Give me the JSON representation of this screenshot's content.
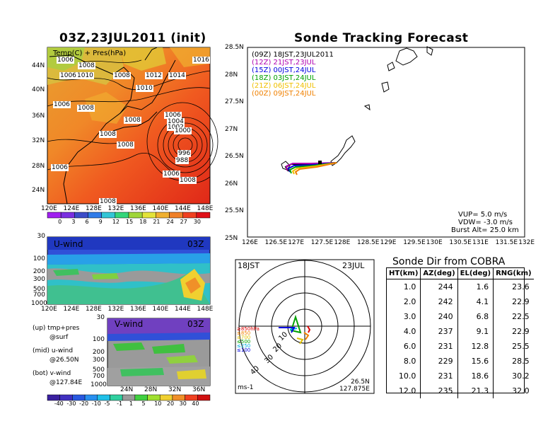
{
  "map_panel": {
    "title": "03Z,23JUL2011 (init)",
    "subtitle": "Temp(C) + Pres(hPa)",
    "lat_labels": [
      "44N",
      "40N",
      "36N",
      "32N",
      "28N",
      "24N"
    ],
    "lon_labels": [
      "120E",
      "124E",
      "128E",
      "132E",
      "136E",
      "140E",
      "144E",
      "148E"
    ],
    "pressure_labels": [
      "1006",
      "1008",
      "1006",
      "1010",
      "1008",
      "1012",
      "1014",
      "1016",
      "1010",
      "1006",
      "1008",
      "1006",
      "1008",
      "1004",
      "1002",
      "1000",
      "1008",
      "1008",
      "1006",
      "996",
      "988",
      "1006",
      "1008",
      "1008"
    ],
    "colorbar_values": [
      "0",
      "3",
      "6",
      "9",
      "12",
      "15",
      "18",
      "21",
      "24",
      "27",
      "30"
    ],
    "colorbar_colors": [
      "#a020f0",
      "#7a2ee0",
      "#3b4cc8",
      "#2f7be8",
      "#33c6d6",
      "#34d67a",
      "#9fd63a",
      "#e3e33a",
      "#f0b030",
      "#f08028",
      "#f04020",
      "#e01018"
    ]
  },
  "uwind_panel": {
    "label": "U-wind",
    "time": "03Z",
    "y_labels": [
      "30",
      "100",
      "200",
      "300",
      "500",
      "700",
      "1000"
    ],
    "x_labels": [
      "120E",
      "124E",
      "128E",
      "132E",
      "136E",
      "140E",
      "144E",
      "148E"
    ]
  },
  "vwind_panel": {
    "label": "V-wind",
    "time": "03Z",
    "y_labels": [
      "30",
      "100",
      "200",
      "300",
      "500",
      "700",
      "1000"
    ],
    "x_labels": [
      "24N",
      "28N",
      "32N",
      "36N"
    ],
    "colorbar_values": [
      "-40",
      "-30",
      "-20",
      "-10",
      "-5",
      "-1",
      "1",
      "5",
      "10",
      "20",
      "30",
      "40"
    ],
    "colorbar_colors": [
      "#3a20a0",
      "#4030c0",
      "#2858e0",
      "#2890f0",
      "#20c0e8",
      "#30d0a0",
      "#9a9a9a",
      "#40d040",
      "#a0e030",
      "#f0d030",
      "#f09028",
      "#f04020",
      "#d01010"
    ]
  },
  "legend_notes": {
    "line1": "(up) tmp+pres",
    "line2": "@surf",
    "line3": "(mid) u-wind",
    "line4": "@26.50N",
    "line5": "(bot) v-wind",
    "line6": "@127.84E"
  },
  "tracking": {
    "title": "Sonde Tracking Forecast",
    "lat_labels": [
      "28.5N",
      "28N",
      "27.5N",
      "27N",
      "26.5N",
      "26N",
      "25.5N",
      "25N"
    ],
    "lon_labels": [
      "126E",
      "126.5E",
      "127E",
      "127.5E",
      "128E",
      "128.5E",
      "129E",
      "129.5E",
      "130E",
      "130.5E",
      "131E",
      "131.5E",
      "132E"
    ],
    "runs": [
      {
        "label": "(09Z)  18JST,23JUL2011",
        "color": "#000000"
      },
      {
        "label": "(12Z)  21JST,23JUL",
        "color": "#b000b0"
      },
      {
        "label": "(15Z)  00JST,24JUL",
        "color": "#0000e0"
      },
      {
        "label": "(18Z)  03JST,24JUL",
        "color": "#00a000"
      },
      {
        "label": "(21Z)  06JST,24JUL",
        "color": "#f0c000"
      },
      {
        "label": "(00Z)  09JST,24JUL",
        "color": "#f08000"
      }
    ],
    "vup": "VUP= 5.0 m/s",
    "vdw": "VDW= -3.0 m/s",
    "burst": "Burst Alt= 25.0 km"
  },
  "radar": {
    "time_left": "18JST",
    "date_right": "23JUL",
    "units": "ms-1",
    "lat": "26.5N",
    "lon": "127.875E",
    "ring_labels": [
      "10",
      "20",
      "30",
      "40"
    ],
    "level_labels": [
      {
        "text": "≥850hPa",
        "color": "#e00000"
      },
      {
        "text": "≤850",
        "color": "#f08000"
      },
      {
        "text": "≤700",
        "color": "#e0c000"
      },
      {
        "text": "≤500",
        "color": "#00a000"
      },
      {
        "text": "≤250",
        "color": "#00b0e0"
      },
      {
        "text": "≤100",
        "color": "#0000e0"
      }
    ]
  },
  "sonde_table": {
    "title": "Sonde Dir from COBRA",
    "headers": [
      "HT(km)",
      "AZ(deg)",
      "EL(deg)",
      "RNG(km)"
    ],
    "rows": [
      [
        "1.0",
        "244",
        "1.6",
        "23.6"
      ],
      [
        "2.0",
        "242",
        "4.1",
        "22.9"
      ],
      [
        "3.0",
        "240",
        "6.8",
        "22.5"
      ],
      [
        "4.0",
        "237",
        "9.1",
        "22.9"
      ],
      [
        "6.0",
        "231",
        "12.8",
        "25.5"
      ],
      [
        "8.0",
        "229",
        "15.6",
        "28.5"
      ],
      [
        "10.0",
        "231",
        "18.6",
        "30.2"
      ],
      [
        "12.0",
        "235",
        "21.3",
        "32.0"
      ]
    ]
  }
}
